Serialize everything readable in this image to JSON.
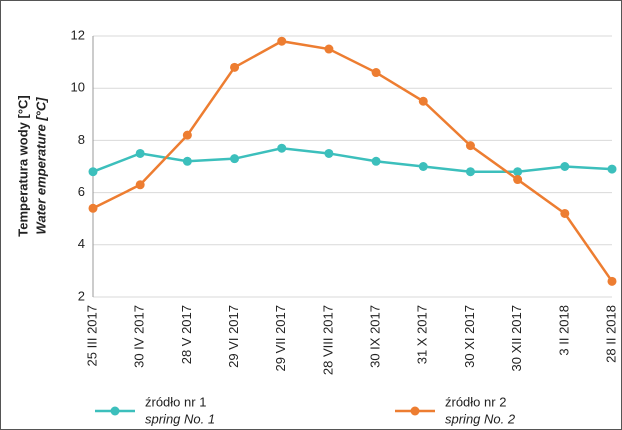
{
  "chart_data": {
    "type": "line",
    "ylabel": "Temperatura wody [°C]",
    "ylabel_en": "Water emperature [°C]",
    "categories": [
      "25 III 2017",
      "30 IV 2017",
      "28 V 2017",
      "29 VI 2017",
      "29 VII 2017",
      "28 VIII 2017",
      "30 IX 2017",
      "31 X 2017",
      "30 XI 2017",
      "30 XII 2017",
      "3 II 2018",
      "28 II 2018"
    ],
    "series": [
      {
        "name": "źródło nr 1",
        "name_en": "spring No. 1",
        "color": "#3cbfbc",
        "values": [
          6.8,
          7.5,
          7.2,
          7.3,
          7.7,
          7.5,
          7.2,
          7.0,
          6.8,
          6.8,
          7.0,
          6.9
        ]
      },
      {
        "name": "źródło nr 2",
        "name_en": "spring No. 2",
        "color": "#ed7d31",
        "values": [
          5.4,
          6.3,
          8.2,
          10.8,
          11.8,
          11.5,
          10.6,
          9.5,
          7.8,
          6.5,
          5.2,
          2.6
        ]
      }
    ],
    "ylim": [
      2,
      12
    ],
    "yticks": [
      2,
      4,
      6,
      8,
      10,
      12
    ],
    "grid": true
  }
}
